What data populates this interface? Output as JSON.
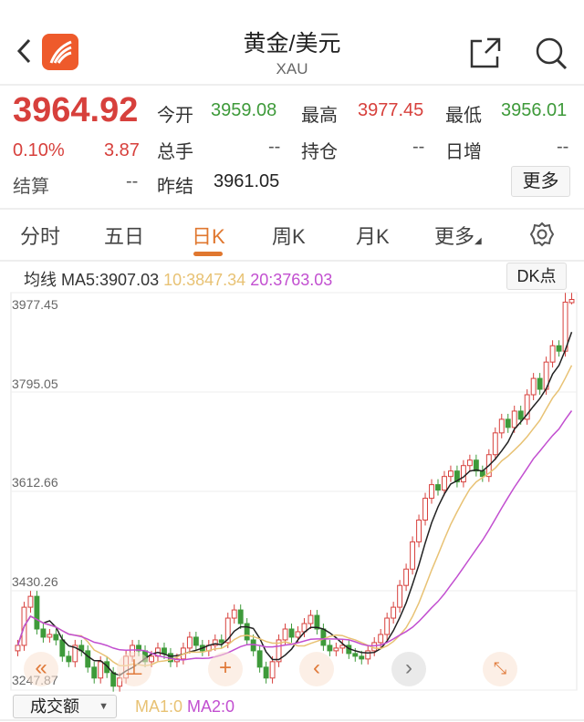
{
  "header": {
    "title": "黄金/美元",
    "subtitle": "XAU",
    "icons": [
      "back-icon",
      "app-logo",
      "share-icon",
      "search-icon"
    ]
  },
  "quote": {
    "price": "3964.92",
    "change_pct": "0.10%",
    "change": "3.87",
    "open_label": "今开",
    "open": "3959.08",
    "high_label": "最高",
    "high": "3977.45",
    "low_label": "最低",
    "low": "3956.01",
    "volume_label": "总手",
    "volume": "--",
    "position_label": "持仓",
    "position": "--",
    "daily_inc_label": "日增",
    "daily_inc": "--",
    "settle_label": "结算",
    "settle": "--",
    "prev_settle_label": "昨结",
    "prev_settle": "3961.05",
    "more_label": "更多"
  },
  "tabs": [
    {
      "label": "分时"
    },
    {
      "label": "五日"
    },
    {
      "label": "日K",
      "active": true
    },
    {
      "label": "周K"
    },
    {
      "label": "月K"
    },
    {
      "label": "更多"
    }
  ],
  "ma_legend": {
    "prefix": "均线",
    "ma5": "MA5:3907.03",
    "ma10": "10:3847.34",
    "ma20": "20:3763.03",
    "dk_label": "DK点"
  },
  "colors": {
    "up": "#d7403c",
    "down": "#3e9a3a",
    "ma5": "#222222",
    "ma10": "#e8c274",
    "ma20": "#c24fd0",
    "accent": "#e0772f"
  },
  "chart_data": {
    "type": "candlestick",
    "y_ticks": [
      "3977.45",
      "3795.05",
      "3612.66",
      "3430.26",
      "3247.87"
    ],
    "ylim": [
      3247.87,
      3977.45
    ],
    "grid": true,
    "open": [
      3320,
      3330,
      3400,
      3420,
      3360,
      3345,
      3350,
      3340,
      3310,
      3300,
      3330,
      3320,
      3290,
      3270,
      3300,
      3280,
      3255,
      3270,
      3310,
      3330,
      3320,
      3300,
      3310,
      3325,
      3315,
      3300,
      3305,
      3325,
      3345,
      3330,
      3320,
      3330,
      3340,
      3335,
      3380,
      3395,
      3370,
      3340,
      3320,
      3290,
      3270,
      3300,
      3340,
      3360,
      3345,
      3355,
      3370,
      3385,
      3360,
      3330,
      3320,
      3325,
      3330,
      3315,
      3310,
      3305,
      3320,
      3335,
      3350,
      3380,
      3400,
      3440,
      3470,
      3520,
      3560,
      3600,
      3625,
      3615,
      3640,
      3650,
      3630,
      3660,
      3670,
      3650,
      3640,
      3680,
      3720,
      3745,
      3730,
      3760,
      3745,
      3790,
      3820,
      3800,
      3850,
      3880,
      3870,
      3959
    ],
    "high": [
      3340,
      3410,
      3430,
      3430,
      3370,
      3360,
      3360,
      3350,
      3320,
      3340,
      3340,
      3330,
      3300,
      3310,
      3310,
      3290,
      3280,
      3320,
      3340,
      3340,
      3330,
      3320,
      3335,
      3335,
      3325,
      3315,
      3335,
      3355,
      3355,
      3340,
      3340,
      3350,
      3350,
      3390,
      3405,
      3405,
      3380,
      3350,
      3330,
      3300,
      3310,
      3350,
      3370,
      3370,
      3365,
      3380,
      3395,
      3395,
      3370,
      3340,
      3335,
      3340,
      3340,
      3325,
      3320,
      3330,
      3345,
      3360,
      3390,
      3410,
      3450,
      3480,
      3530,
      3570,
      3610,
      3635,
      3635,
      3650,
      3660,
      3660,
      3670,
      3680,
      3680,
      3660,
      3690,
      3730,
      3755,
      3755,
      3770,
      3770,
      3800,
      3830,
      3830,
      3860,
      3890,
      3890,
      3977,
      3977
    ],
    "low": [
      3310,
      3320,
      3390,
      3350,
      3335,
      3335,
      3330,
      3300,
      3290,
      3290,
      3310,
      3280,
      3260,
      3260,
      3270,
      3245,
      3245,
      3260,
      3300,
      3310,
      3290,
      3290,
      3300,
      3305,
      3290,
      3290,
      3295,
      3315,
      3320,
      3310,
      3310,
      3320,
      3325,
      3325,
      3370,
      3360,
      3330,
      3310,
      3280,
      3260,
      3260,
      3290,
      3330,
      3335,
      3335,
      3345,
      3360,
      3350,
      3320,
      3310,
      3310,
      3315,
      3305,
      3300,
      3295,
      3295,
      3310,
      3325,
      3340,
      3370,
      3390,
      3430,
      3460,
      3510,
      3550,
      3590,
      3605,
      3605,
      3630,
      3620,
      3620,
      3650,
      3640,
      3630,
      3630,
      3670,
      3710,
      3720,
      3720,
      3735,
      3735,
      3780,
      3790,
      3790,
      3840,
      3860,
      3860,
      3956
    ],
    "close": [
      3330,
      3400,
      3420,
      3360,
      3345,
      3350,
      3340,
      3310,
      3300,
      3330,
      3320,
      3290,
      3270,
      3300,
      3280,
      3255,
      3270,
      3310,
      3330,
      3320,
      3300,
      3310,
      3325,
      3315,
      3300,
      3305,
      3325,
      3345,
      3330,
      3320,
      3330,
      3340,
      3335,
      3380,
      3395,
      3370,
      3340,
      3320,
      3290,
      3270,
      3300,
      3340,
      3360,
      3345,
      3355,
      3370,
      3385,
      3360,
      3330,
      3320,
      3325,
      3330,
      3315,
      3310,
      3305,
      3320,
      3335,
      3350,
      3380,
      3400,
      3440,
      3470,
      3520,
      3560,
      3600,
      3625,
      3615,
      3640,
      3650,
      3630,
      3660,
      3670,
      3650,
      3640,
      3680,
      3720,
      3745,
      3730,
      3760,
      3745,
      3790,
      3820,
      3800,
      3850,
      3880,
      3870,
      3960,
      3964.92
    ],
    "ma_periods": [
      5,
      10,
      20
    ]
  },
  "chart_controls": {
    "icons": [
      "double-left-icon",
      "crosshair-bottom-icon",
      "plus-icon",
      "chevron-left-icon",
      "chevron-right-icon",
      "expand-icon"
    ]
  },
  "volume": {
    "selector": "成交额",
    "ma1": "MA1:0",
    "ma2": "MA2:0"
  }
}
